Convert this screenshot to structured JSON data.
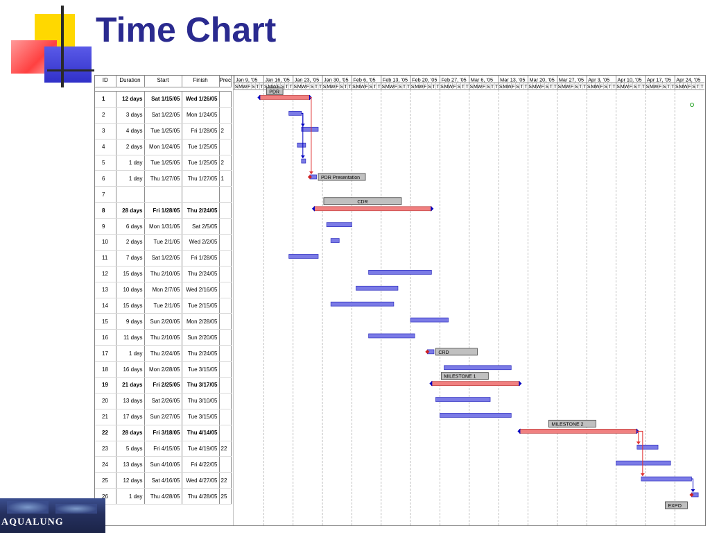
{
  "title": "Time Chart",
  "logo_text": "AQUALUNG",
  "colors": {
    "title": "#2a2a8f",
    "task_bar": "#7b7be6",
    "critical_bar": "#f08080",
    "label_box": "#c0c0c0",
    "link": "#0000c0"
  },
  "table": {
    "headers": {
      "id": "ID",
      "duration": "Duration",
      "start": "Start",
      "finish": "Finish",
      "pred": "Prec"
    },
    "rows": [
      {
        "id": "1",
        "duration": "12 days",
        "start": "Sat 1/15/05",
        "finish": "Wed 1/26/05",
        "pred": "",
        "bold": true
      },
      {
        "id": "2",
        "duration": "3 days",
        "start": "Sat 1/22/05",
        "finish": "Mon 1/24/05",
        "pred": ""
      },
      {
        "id": "3",
        "duration": "4 days",
        "start": "Tue 1/25/05",
        "finish": "Fri 1/28/05",
        "pred": "2"
      },
      {
        "id": "4",
        "duration": "2 days",
        "start": "Mon 1/24/05",
        "finish": "Tue 1/25/05",
        "pred": ""
      },
      {
        "id": "5",
        "duration": "1 day",
        "start": "Tue 1/25/05",
        "finish": "Tue 1/25/05",
        "pred": "2"
      },
      {
        "id": "6",
        "duration": "1 day",
        "start": "Thu 1/27/05",
        "finish": "Thu 1/27/05",
        "pred": "1"
      },
      {
        "id": "7",
        "duration": "",
        "start": "",
        "finish": "",
        "pred": ""
      },
      {
        "id": "8",
        "duration": "28 days",
        "start": "Fri 1/28/05",
        "finish": "Thu 2/24/05",
        "pred": "",
        "bold": true
      },
      {
        "id": "9",
        "duration": "6 days",
        "start": "Mon 1/31/05",
        "finish": "Sat 2/5/05",
        "pred": ""
      },
      {
        "id": "10",
        "duration": "2 days",
        "start": "Tue 2/1/05",
        "finish": "Wed 2/2/05",
        "pred": ""
      },
      {
        "id": "11",
        "duration": "7 days",
        "start": "Sat 1/22/05",
        "finish": "Fri 1/28/05",
        "pred": ""
      },
      {
        "id": "12",
        "duration": "15 days",
        "start": "Thu 2/10/05",
        "finish": "Thu 2/24/05",
        "pred": ""
      },
      {
        "id": "13",
        "duration": "10 days",
        "start": "Mon 2/7/05",
        "finish": "Wed 2/16/05",
        "pred": ""
      },
      {
        "id": "14",
        "duration": "15 days",
        "start": "Tue 2/1/05",
        "finish": "Tue 2/15/05",
        "pred": ""
      },
      {
        "id": "15",
        "duration": "9 days",
        "start": "Sun 2/20/05",
        "finish": "Mon 2/28/05",
        "pred": ""
      },
      {
        "id": "16",
        "duration": "11 days",
        "start": "Thu 2/10/05",
        "finish": "Sun 2/20/05",
        "pred": ""
      },
      {
        "id": "17",
        "duration": "1 day",
        "start": "Thu 2/24/05",
        "finish": "Thu 2/24/05",
        "pred": ""
      },
      {
        "id": "18",
        "duration": "16 days",
        "start": "Mon 2/28/05",
        "finish": "Tue 3/15/05",
        "pred": ""
      },
      {
        "id": "19",
        "duration": "21 days",
        "start": "Fri 2/25/05",
        "finish": "Thu 3/17/05",
        "pred": "",
        "bold": true
      },
      {
        "id": "20",
        "duration": "13 days",
        "start": "Sat 2/26/05",
        "finish": "Thu 3/10/05",
        "pred": ""
      },
      {
        "id": "21",
        "duration": "17 days",
        "start": "Sun 2/27/05",
        "finish": "Tue 3/15/05",
        "pred": ""
      },
      {
        "id": "22",
        "duration": "28 days",
        "start": "Fri 3/18/05",
        "finish": "Thu 4/14/05",
        "pred": "",
        "bold": true
      },
      {
        "id": "23",
        "duration": "5 days",
        "start": "Fri 4/15/05",
        "finish": "Tue 4/19/05",
        "pred": "22"
      },
      {
        "id": "24",
        "duration": "13 days",
        "start": "Sun 4/10/05",
        "finish": "Fri 4/22/05",
        "pred": ""
      },
      {
        "id": "25",
        "duration": "12 days",
        "start": "Sat 4/16/05",
        "finish": "Wed 4/27/05",
        "pred": "22"
      },
      {
        "id": "26",
        "duration": "1 day",
        "start": "Thu 4/28/05",
        "finish": "Thu 4/28/05",
        "pred": "25"
      }
    ]
  },
  "chart_data": {
    "type": "gantt",
    "timeline_start": "2005-01-09",
    "weeks": [
      "Jan 9, '05",
      "Jan 16, '05",
      "Jan 23, '05",
      "Jan 30, '05",
      "Feb 6, '05",
      "Feb 13, '05",
      "Feb 20, '05",
      "Feb 27, '05",
      "Mar 6, '05",
      "Mar 13, '05",
      "Mar 20, '05",
      "Mar 27, '05",
      "Apr 3, '05",
      "Apr 10, '05",
      "Apr 17, '05",
      "Apr 24, '05"
    ],
    "day_letters": [
      "S",
      "M",
      "W",
      "F",
      "S",
      "T",
      "T"
    ],
    "tasks": [
      {
        "row": 1,
        "start": "2005-01-15",
        "finish": "2005-01-26",
        "kind": "summary"
      },
      {
        "row": 2,
        "start": "2005-01-22",
        "finish": "2005-01-24",
        "kind": "task"
      },
      {
        "row": 3,
        "start": "2005-01-25",
        "finish": "2005-01-28",
        "kind": "task"
      },
      {
        "row": 4,
        "start": "2005-01-24",
        "finish": "2005-01-25",
        "kind": "task"
      },
      {
        "row": 5,
        "start": "2005-01-25",
        "finish": "2005-01-25",
        "kind": "task"
      },
      {
        "row": 6,
        "start": "2005-01-27",
        "finish": "2005-01-27",
        "kind": "marker"
      },
      {
        "row": 8,
        "start": "2005-01-28",
        "finish": "2005-02-24",
        "kind": "summary"
      },
      {
        "row": 9,
        "start": "2005-01-31",
        "finish": "2005-02-05",
        "kind": "task"
      },
      {
        "row": 10,
        "start": "2005-02-01",
        "finish": "2005-02-02",
        "kind": "task"
      },
      {
        "row": 11,
        "start": "2005-01-22",
        "finish": "2005-01-28",
        "kind": "task"
      },
      {
        "row": 12,
        "start": "2005-02-10",
        "finish": "2005-02-24",
        "kind": "task"
      },
      {
        "row": 13,
        "start": "2005-02-07",
        "finish": "2005-02-16",
        "kind": "task"
      },
      {
        "row": 14,
        "start": "2005-02-01",
        "finish": "2005-02-15",
        "kind": "task"
      },
      {
        "row": 15,
        "start": "2005-02-20",
        "finish": "2005-02-28",
        "kind": "task"
      },
      {
        "row": 16,
        "start": "2005-02-10",
        "finish": "2005-02-20",
        "kind": "task"
      },
      {
        "row": 17,
        "start": "2005-02-24",
        "finish": "2005-02-24",
        "kind": "marker"
      },
      {
        "row": 18,
        "start": "2005-02-28",
        "finish": "2005-03-15",
        "kind": "task"
      },
      {
        "row": 19,
        "start": "2005-02-25",
        "finish": "2005-03-17",
        "kind": "summary"
      },
      {
        "row": 20,
        "start": "2005-02-26",
        "finish": "2005-03-10",
        "kind": "task"
      },
      {
        "row": 21,
        "start": "2005-02-27",
        "finish": "2005-03-15",
        "kind": "task"
      },
      {
        "row": 22,
        "start": "2005-03-18",
        "finish": "2005-04-14",
        "kind": "summary"
      },
      {
        "row": 23,
        "start": "2005-04-15",
        "finish": "2005-04-19",
        "kind": "task"
      },
      {
        "row": 24,
        "start": "2005-04-10",
        "finish": "2005-04-22",
        "kind": "task"
      },
      {
        "row": 25,
        "start": "2005-04-16",
        "finish": "2005-04-27",
        "kind": "task"
      },
      {
        "row": 26,
        "start": "2005-04-28",
        "finish": "2005-04-28",
        "kind": "marker"
      }
    ],
    "labels": [
      {
        "text": "PDR",
        "row": 1
      },
      {
        "text": "PDR Presentation",
        "row": 6
      },
      {
        "text": "CDR",
        "row": 8
      },
      {
        "text": "CRD",
        "row": 17
      },
      {
        "text": "MILESTONE 1",
        "row": 19
      },
      {
        "text": "MILESTONE 2",
        "row": 22
      },
      {
        "text": "EXPO",
        "row": 26
      }
    ]
  }
}
